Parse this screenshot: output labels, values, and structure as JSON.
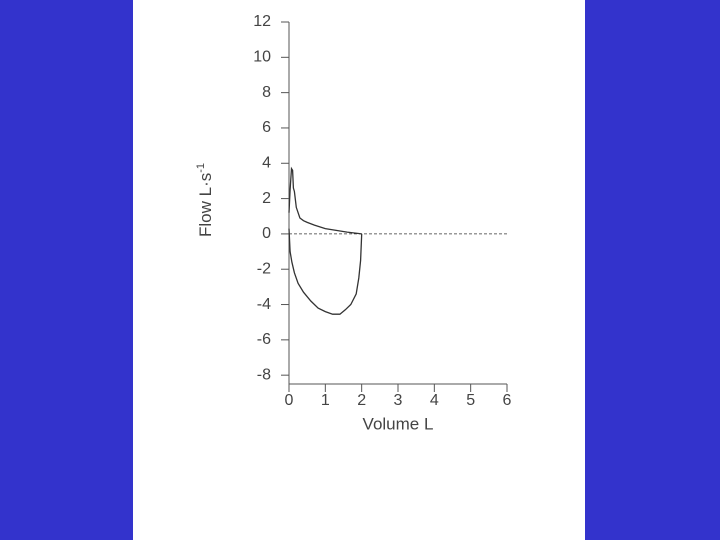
{
  "chart_data": {
    "type": "line",
    "xlabel": "Volume L",
    "ylabel": "Flow L·s",
    "ylabel_sup": "-1",
    "xlim": [
      0,
      6
    ],
    "xticks": [
      0,
      1,
      2,
      3,
      4,
      5,
      6
    ],
    "ylim": [
      -8.5,
      12
    ],
    "yticks": [
      -8,
      -6,
      -4,
      -2,
      0,
      2,
      4,
      6,
      8,
      10,
      12
    ],
    "hline": 0,
    "series": [
      {
        "color": "#333333",
        "x": [
          0,
          0.03,
          0.07,
          0.1,
          0.12,
          0.15,
          0.2,
          0.3,
          0.4,
          0.5,
          0.7,
          1.0,
          1.3,
          1.6,
          1.8,
          2.0
        ],
        "values": [
          1.2,
          2.5,
          3.7,
          3.6,
          2.6,
          2.4,
          1.5,
          0.9,
          0.75,
          0.65,
          0.5,
          0.3,
          0.2,
          0.1,
          0.05,
          0
        ]
      },
      {
        "color": "#333333",
        "x": [
          0,
          0.03,
          0.08,
          0.15,
          0.25,
          0.4,
          0.6,
          0.8,
          1.0,
          1.2,
          1.4,
          1.55,
          1.7,
          1.85,
          1.92,
          1.97,
          2.0
        ],
        "values": [
          0.3,
          -1.0,
          -1.6,
          -2.2,
          -2.8,
          -3.3,
          -3.8,
          -4.2,
          -4.4,
          -4.55,
          -4.55,
          -4.3,
          -4.0,
          -3.4,
          -2.5,
          -1.5,
          0
        ]
      }
    ]
  }
}
